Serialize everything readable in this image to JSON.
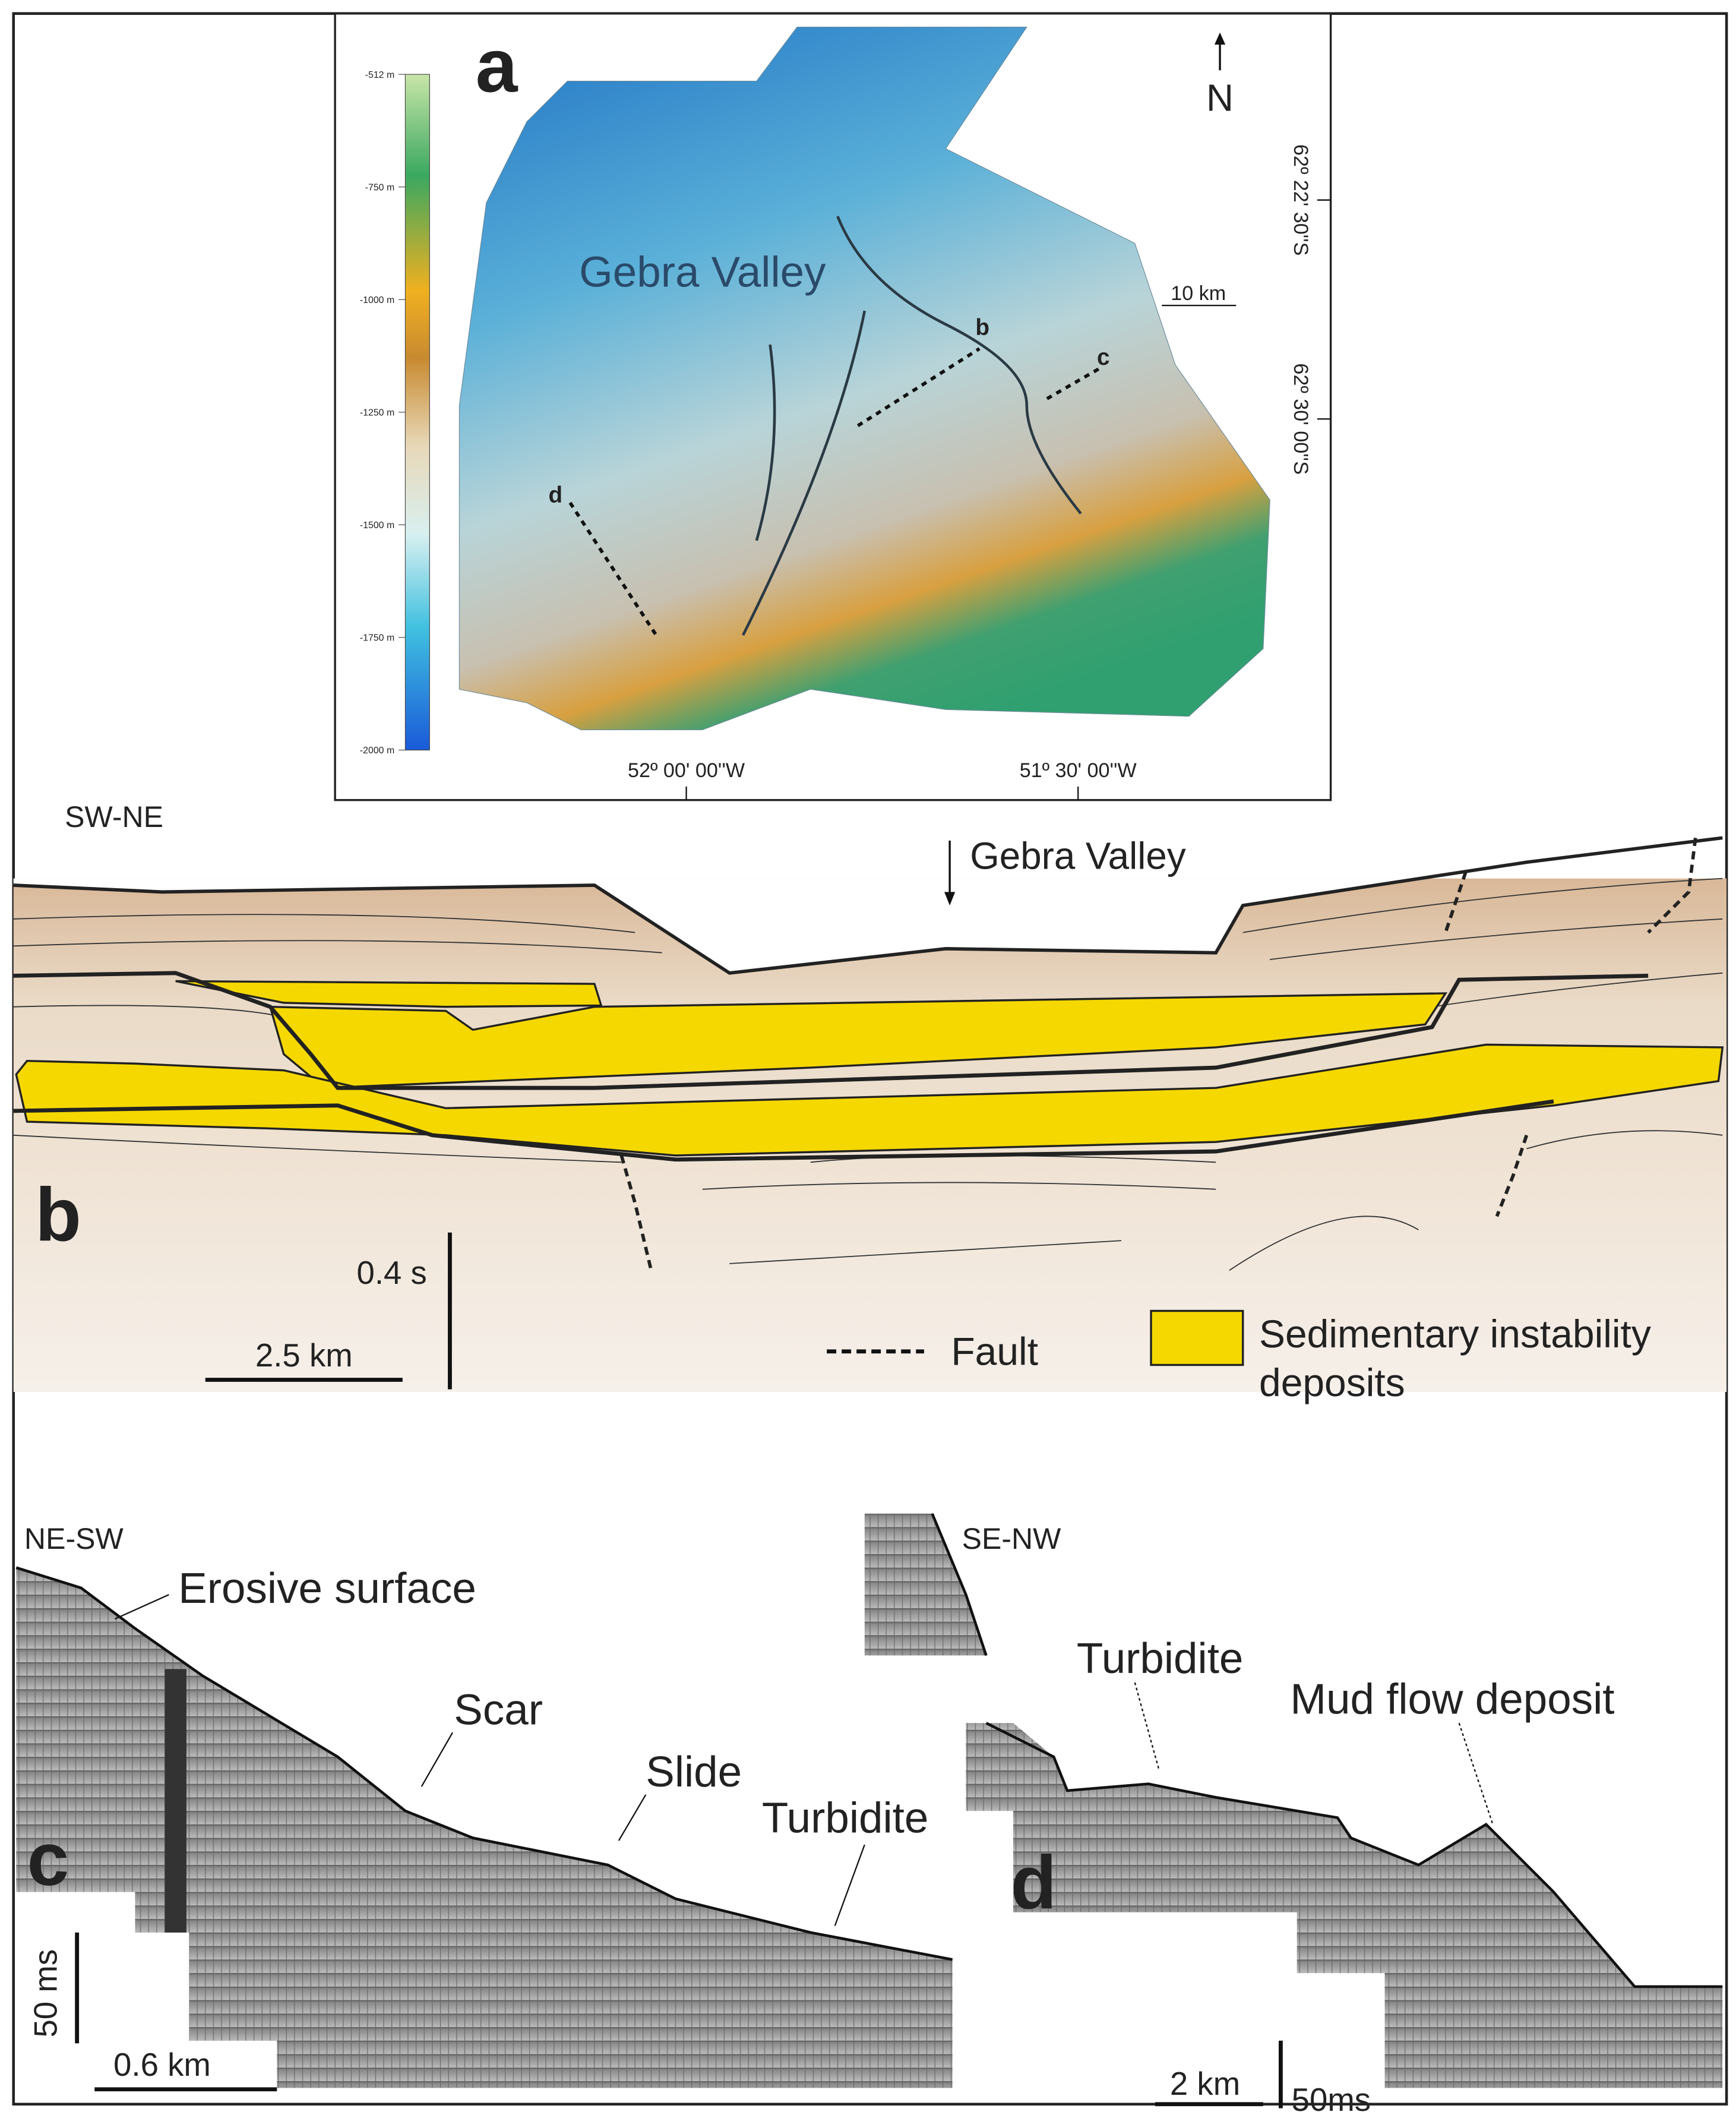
{
  "panel_a": {
    "label": "a",
    "colorbar_ticks": [
      "-512 m",
      "-750 m",
      "-1000 m",
      "-1250 m",
      "-1500 m",
      "-1750 m",
      "-2000 m"
    ],
    "place_label": "Gebra Valley",
    "profile_labels": [
      "b",
      "c",
      "d"
    ],
    "north": "N",
    "scale": "10 km",
    "latitudes": [
      "62º 22' 30''S",
      "62º 30' 00''S"
    ],
    "longitudes": [
      "52º 00' 00''W",
      "51º 30' 00''W"
    ]
  },
  "panel_b": {
    "label": "b",
    "orientation": "SW-NE",
    "place_label": "Gebra Valley",
    "time_scale": "0.4 s",
    "distance_scale": "2.5 km",
    "legend": {
      "fault": "Fault",
      "deposits": [
        "Sedimentary instability",
        "deposits"
      ]
    }
  },
  "panel_c": {
    "label": "c",
    "orientation": "NE-SW",
    "annotations": [
      "Erosive surface",
      "Scar",
      "Slide",
      "Turbidite"
    ],
    "time_scale": "50 ms",
    "distance_scale": "0.6 km"
  },
  "panel_d": {
    "label": "d",
    "orientation": "SE-NW",
    "annotations": [
      "Turbidite",
      "Mud flow deposit"
    ],
    "distance_scale": "2 km",
    "time_scale": "50ms"
  }
}
